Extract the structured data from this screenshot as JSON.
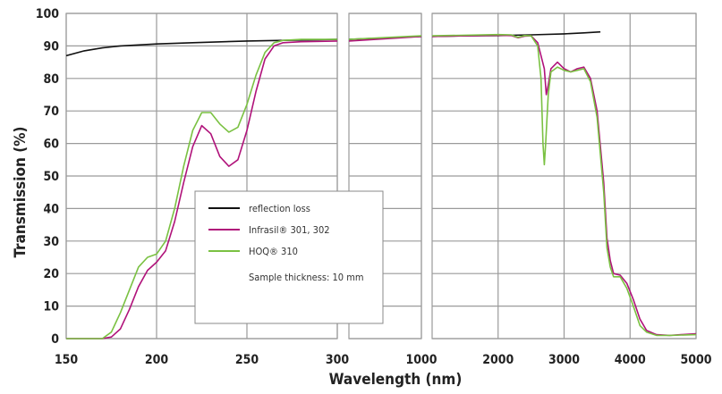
{
  "chart_data": {
    "type": "line",
    "title": "",
    "xlabel": "Wavelength (nm)",
    "ylabel": "Transmission (%)",
    "ylim": [
      0,
      100
    ],
    "yticks": [
      "0",
      "10",
      "20",
      "30",
      "40",
      "50",
      "60",
      "70",
      "80",
      "90",
      "100"
    ],
    "grid": true,
    "legend_placement": "center",
    "panels": [
      {
        "xlim": [
          150,
          300
        ],
        "xticks": [
          "150",
          "200",
          "250",
          "300"
        ],
        "tick_values": [
          150,
          200,
          250,
          300
        ]
      },
      {
        "xlim": [
          300,
          1000
        ],
        "xticks": [
          "1000"
        ],
        "tick_values": [
          1000
        ]
      },
      {
        "xlim": [
          1000,
          5000
        ],
        "xticks": [
          "2000",
          "3000",
          "4000",
          "5000"
        ],
        "tick_values": [
          2000,
          3000,
          4000,
          5000
        ]
      }
    ],
    "legend": {
      "entries": [
        "reflection loss",
        "Infrasil® 301, 302",
        "HOQ® 310"
      ],
      "note": "Sample thickness: 10 mm"
    },
    "colors": {
      "reflection loss": "#111111",
      "Infrasil® 301, 302": "#b0127a",
      "HOQ® 310": "#7ac142"
    },
    "series": [
      {
        "name": "reflection loss",
        "points": [
          [
            150,
            87
          ],
          [
            160,
            88.5
          ],
          [
            170,
            89.4
          ],
          [
            180,
            90
          ],
          [
            200,
            90.6
          ],
          [
            220,
            91
          ],
          [
            250,
            91.5
          ],
          [
            280,
            91.8
          ],
          [
            300,
            92
          ],
          [
            1000,
            92.9
          ],
          [
            1500,
            93.1
          ],
          [
            2000,
            93.2
          ],
          [
            2500,
            93.4
          ],
          [
            3000,
            93.7
          ],
          [
            3300,
            94
          ],
          [
            3550,
            94.3
          ]
        ]
      },
      {
        "name": "Infrasil® 301, 302",
        "points": [
          [
            150,
            0
          ],
          [
            170,
            0
          ],
          [
            175,
            0.5
          ],
          [
            180,
            3
          ],
          [
            185,
            9
          ],
          [
            190,
            16
          ],
          [
            195,
            21
          ],
          [
            200,
            23.5
          ],
          [
            205,
            27
          ],
          [
            210,
            36
          ],
          [
            215,
            48
          ],
          [
            220,
            59
          ],
          [
            225,
            65.5
          ],
          [
            230,
            63
          ],
          [
            235,
            56
          ],
          [
            240,
            53
          ],
          [
            245,
            55
          ],
          [
            250,
            64
          ],
          [
            255,
            76
          ],
          [
            260,
            86
          ],
          [
            265,
            90
          ],
          [
            270,
            91
          ],
          [
            280,
            91.3
          ],
          [
            300,
            91.5
          ],
          [
            1000,
            92.9
          ],
          [
            2000,
            93.3
          ],
          [
            2200,
            93.2
          ],
          [
            2300,
            92.5
          ],
          [
            2400,
            93
          ],
          [
            2500,
            93.1
          ],
          [
            2600,
            91
          ],
          [
            2650,
            87
          ],
          [
            2700,
            83
          ],
          [
            2730,
            75
          ],
          [
            2760,
            78
          ],
          [
            2800,
            83
          ],
          [
            2900,
            85
          ],
          [
            3000,
            83
          ],
          [
            3100,
            82
          ],
          [
            3200,
            83
          ],
          [
            3300,
            83.5
          ],
          [
            3400,
            80
          ],
          [
            3500,
            70
          ],
          [
            3600,
            48
          ],
          [
            3650,
            31
          ],
          [
            3700,
            24
          ],
          [
            3750,
            20
          ],
          [
            3850,
            19.5
          ],
          [
            3950,
            17
          ],
          [
            4050,
            12
          ],
          [
            4150,
            6
          ],
          [
            4250,
            2.5
          ],
          [
            4400,
            1.2
          ],
          [
            4600,
            1
          ],
          [
            5000,
            1.5
          ]
        ]
      },
      {
        "name": "HOQ® 310",
        "points": [
          [
            150,
            0
          ],
          [
            170,
            0
          ],
          [
            175,
            2
          ],
          [
            180,
            8
          ],
          [
            185,
            15
          ],
          [
            190,
            22
          ],
          [
            195,
            25
          ],
          [
            200,
            26
          ],
          [
            205,
            30
          ],
          [
            210,
            40
          ],
          [
            215,
            53
          ],
          [
            220,
            64
          ],
          [
            225,
            69.5
          ],
          [
            230,
            69.5
          ],
          [
            235,
            66
          ],
          [
            240,
            63.5
          ],
          [
            245,
            65
          ],
          [
            250,
            72
          ],
          [
            255,
            81
          ],
          [
            260,
            88
          ],
          [
            265,
            91
          ],
          [
            270,
            91.7
          ],
          [
            280,
            92
          ],
          [
            300,
            92
          ],
          [
            1000,
            93.1
          ],
          [
            2000,
            93.5
          ],
          [
            2200,
            93.4
          ],
          [
            2300,
            92.6
          ],
          [
            2400,
            93.2
          ],
          [
            2500,
            93.1
          ],
          [
            2600,
            90
          ],
          [
            2650,
            80
          ],
          [
            2680,
            60
          ],
          [
            2700,
            53.5
          ],
          [
            2720,
            60
          ],
          [
            2760,
            75
          ],
          [
            2800,
            82
          ],
          [
            2900,
            83.5
          ],
          [
            3000,
            82.5
          ],
          [
            3100,
            82
          ],
          [
            3200,
            82.5
          ],
          [
            3300,
            83
          ],
          [
            3400,
            79
          ],
          [
            3500,
            68
          ],
          [
            3600,
            45
          ],
          [
            3650,
            28
          ],
          [
            3700,
            22
          ],
          [
            3750,
            19
          ],
          [
            3850,
            19
          ],
          [
            3950,
            15.5
          ],
          [
            4050,
            10
          ],
          [
            4150,
            4
          ],
          [
            4250,
            2
          ],
          [
            4400,
            1
          ],
          [
            4600,
            1
          ],
          [
            5000,
            1.2
          ]
        ]
      }
    ]
  }
}
